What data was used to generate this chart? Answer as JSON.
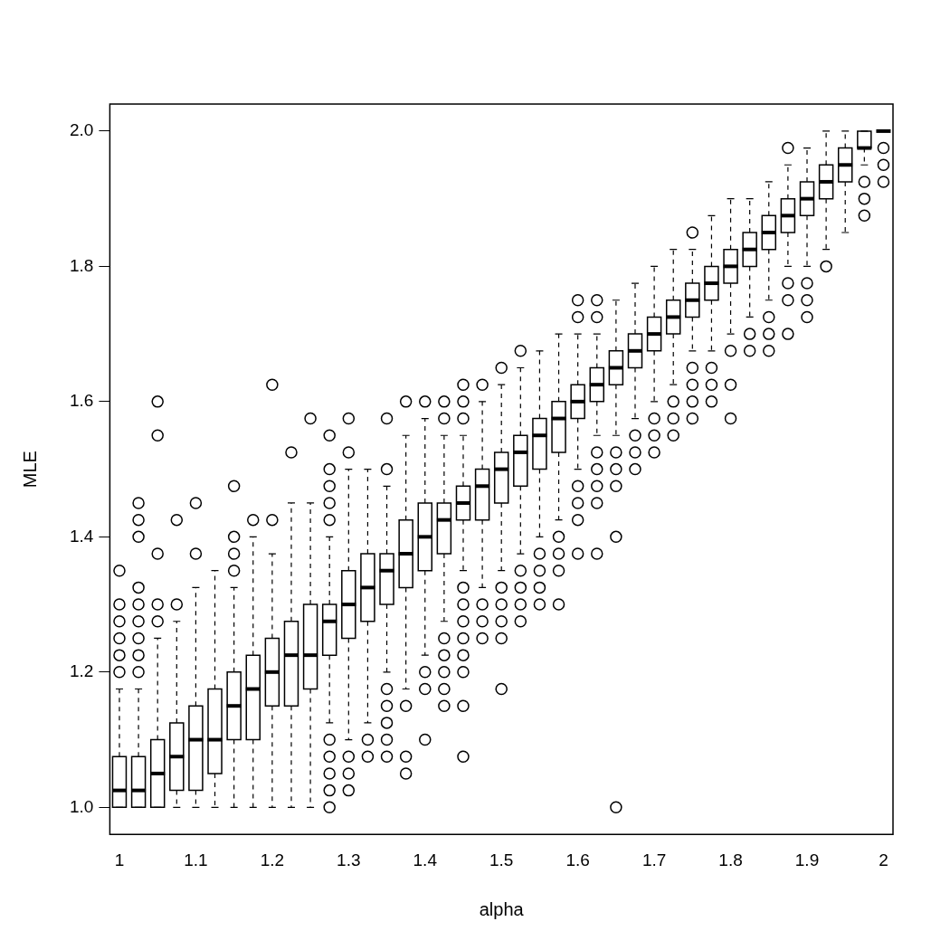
{
  "chart_data": {
    "type": "box",
    "xlabel": "alpha",
    "ylabel": "MLE",
    "categories": [
      "1",
      null,
      null,
      null,
      "1.1",
      null,
      null,
      null,
      "1.2",
      null,
      null,
      null,
      "1.3",
      null,
      null,
      null,
      "1.4",
      null,
      null,
      null,
      "1.5",
      null,
      null,
      null,
      "1.6",
      null,
      null,
      null,
      "1.7",
      null,
      null,
      null,
      "1.8",
      null,
      null,
      null,
      "1.9",
      null,
      null,
      null,
      "2"
    ],
    "ylim": [
      0.96,
      2.04
    ],
    "yticks": [
      {
        "value": 1,
        "label": "1.0"
      },
      {
        "value": 1.2,
        "label": "1.2"
      },
      {
        "value": 1.4,
        "label": "1.4"
      },
      {
        "value": 1.6,
        "label": "1.6"
      },
      {
        "value": 1.8,
        "label": "1.8"
      },
      {
        "value": 2,
        "label": "2.0"
      }
    ],
    "grid": false,
    "legend": false,
    "marker": "circle",
    "line_style": "dashed",
    "boxes": [
      {
        "low": 1,
        "q1": 1,
        "median": 1.025,
        "q3": 1.075,
        "high": 1.175,
        "outliers": [
          1.2,
          1.225,
          1.25,
          1.275,
          1.3,
          1.35
        ]
      },
      {
        "low": 1,
        "q1": 1,
        "median": 1.025,
        "q3": 1.075,
        "high": 1.175,
        "outliers": [
          1.2,
          1.225,
          1.25,
          1.275,
          1.3,
          1.325,
          1.4,
          1.425,
          1.45
        ]
      },
      {
        "low": 1,
        "q1": 1,
        "median": 1.05,
        "q3": 1.1,
        "high": 1.25,
        "outliers": [
          1.275,
          1.3,
          1.375,
          1.55,
          1.6
        ]
      },
      {
        "low": 1,
        "q1": 1.025,
        "median": 1.075,
        "q3": 1.125,
        "high": 1.275,
        "outliers": [
          1.3,
          1.425
        ]
      },
      {
        "low": 1,
        "q1": 1.025,
        "median": 1.1,
        "q3": 1.15,
        "high": 1.325,
        "outliers": [
          1.375,
          1.45
        ]
      },
      {
        "low": 1,
        "q1": 1.05,
        "median": 1.1,
        "q3": 1.175,
        "high": 1.35
      },
      {
        "low": 1,
        "q1": 1.1,
        "median": 1.15,
        "q3": 1.2,
        "high": 1.325,
        "outliers": [
          1.35,
          1.375,
          1.4,
          1.475
        ]
      },
      {
        "low": 1,
        "q1": 1.1,
        "median": 1.175,
        "q3": 1.225,
        "high": 1.4,
        "outliers": [
          1.425
        ]
      },
      {
        "low": 1,
        "q1": 1.15,
        "median": 1.2,
        "q3": 1.25,
        "high": 1.375,
        "outliers": [
          1.425,
          1.625
        ]
      },
      {
        "low": 1,
        "q1": 1.15,
        "median": 1.225,
        "q3": 1.275,
        "high": 1.45,
        "outliers": [
          1.525
        ]
      },
      {
        "low": 1,
        "q1": 1.175,
        "median": 1.225,
        "q3": 1.3,
        "high": 1.45,
        "outliers": [
          1.575
        ]
      },
      {
        "low": 1.125,
        "q1": 1.225,
        "median": 1.275,
        "q3": 1.3,
        "high": 1.4,
        "outliers": [
          1,
          1.025,
          1.05,
          1.075,
          1.1,
          1.425,
          1.45,
          1.475,
          1.5,
          1.55
        ]
      },
      {
        "low": 1.1,
        "q1": 1.25,
        "median": 1.3,
        "q3": 1.35,
        "high": 1.5,
        "outliers": [
          1.025,
          1.05,
          1.075,
          1.525,
          1.575
        ]
      },
      {
        "low": 1.125,
        "q1": 1.275,
        "median": 1.325,
        "q3": 1.375,
        "high": 1.5,
        "outliers": [
          1.075,
          1.1
        ]
      },
      {
        "low": 1.2,
        "q1": 1.3,
        "median": 1.35,
        "q3": 1.375,
        "high": 1.475,
        "outliers": [
          1.075,
          1.1,
          1.125,
          1.15,
          1.175,
          1.5,
          1.575
        ]
      },
      {
        "low": 1.175,
        "q1": 1.325,
        "median": 1.375,
        "q3": 1.425,
        "high": 1.55,
        "outliers": [
          1.05,
          1.075,
          1.15,
          1.6
        ]
      },
      {
        "low": 1.225,
        "q1": 1.35,
        "median": 1.4,
        "q3": 1.45,
        "high": 1.575,
        "outliers": [
          1.1,
          1.175,
          1.2,
          1.6
        ]
      },
      {
        "low": 1.275,
        "q1": 1.375,
        "median": 1.425,
        "q3": 1.45,
        "high": 1.55,
        "outliers": [
          1.15,
          1.175,
          1.2,
          1.225,
          1.25,
          1.575,
          1.6
        ]
      },
      {
        "low": 1.35,
        "q1": 1.425,
        "median": 1.45,
        "q3": 1.475,
        "high": 1.55,
        "outliers": [
          1.075,
          1.15,
          1.2,
          1.225,
          1.25,
          1.275,
          1.3,
          1.325,
          1.575,
          1.6,
          1.625
        ]
      },
      {
        "low": 1.325,
        "q1": 1.425,
        "median": 1.475,
        "q3": 1.5,
        "high": 1.6,
        "outliers": [
          1.25,
          1.275,
          1.3,
          1.625
        ]
      },
      {
        "low": 1.35,
        "q1": 1.45,
        "median": 1.5,
        "q3": 1.525,
        "high": 1.625,
        "outliers": [
          1.175,
          1.25,
          1.275,
          1.3,
          1.325,
          1.65
        ]
      },
      {
        "low": 1.375,
        "q1": 1.475,
        "median": 1.525,
        "q3": 1.55,
        "high": 1.65,
        "outliers": [
          1.275,
          1.3,
          1.325,
          1.35,
          1.675
        ]
      },
      {
        "low": 1.4,
        "q1": 1.5,
        "median": 1.55,
        "q3": 1.575,
        "high": 1.675,
        "outliers": [
          1.3,
          1.325,
          1.35,
          1.375
        ]
      },
      {
        "low": 1.425,
        "q1": 1.525,
        "median": 1.575,
        "q3": 1.6,
        "high": 1.7,
        "outliers": [
          1.3,
          1.35,
          1.375,
          1.4
        ]
      },
      {
        "low": 1.5,
        "q1": 1.575,
        "median": 1.6,
        "q3": 1.625,
        "high": 1.7,
        "outliers": [
          1.375,
          1.425,
          1.45,
          1.475,
          1.725,
          1.75
        ]
      },
      {
        "low": 1.55,
        "q1": 1.6,
        "median": 1.625,
        "q3": 1.65,
        "high": 1.7,
        "outliers": [
          1.375,
          1.45,
          1.475,
          1.5,
          1.525,
          1.725,
          1.75
        ]
      },
      {
        "low": 1.55,
        "q1": 1.625,
        "median": 1.65,
        "q3": 1.675,
        "high": 1.75,
        "outliers": [
          1,
          1.4,
          1.475,
          1.5,
          1.525
        ]
      },
      {
        "low": 1.575,
        "q1": 1.65,
        "median": 1.675,
        "q3": 1.7,
        "high": 1.775,
        "outliers": [
          1.5,
          1.525,
          1.55
        ]
      },
      {
        "low": 1.6,
        "q1": 1.675,
        "median": 1.7,
        "q3": 1.725,
        "high": 1.8,
        "outliers": [
          1.525,
          1.55,
          1.575
        ]
      },
      {
        "low": 1.625,
        "q1": 1.7,
        "median": 1.725,
        "q3": 1.75,
        "high": 1.825,
        "outliers": [
          1.55,
          1.575,
          1.6
        ]
      },
      {
        "low": 1.675,
        "q1": 1.725,
        "median": 1.75,
        "q3": 1.775,
        "high": 1.825,
        "outliers": [
          1.575,
          1.6,
          1.625,
          1.65,
          1.85
        ]
      },
      {
        "low": 1.675,
        "q1": 1.75,
        "median": 1.775,
        "q3": 1.8,
        "high": 1.875,
        "outliers": [
          1.6,
          1.625,
          1.65
        ]
      },
      {
        "low": 1.7,
        "q1": 1.775,
        "median": 1.8,
        "q3": 1.825,
        "high": 1.9,
        "outliers": [
          1.575,
          1.625,
          1.675
        ]
      },
      {
        "low": 1.725,
        "q1": 1.8,
        "median": 1.825,
        "q3": 1.85,
        "high": 1.9,
        "outliers": [
          1.675,
          1.7
        ]
      },
      {
        "low": 1.75,
        "q1": 1.825,
        "median": 1.85,
        "q3": 1.875,
        "high": 1.925,
        "outliers": [
          1.675,
          1.7,
          1.725
        ]
      },
      {
        "low": 1.8,
        "q1": 1.85,
        "median": 1.875,
        "q3": 1.9,
        "high": 1.95,
        "outliers": [
          1.7,
          1.75,
          1.775,
          1.975
        ]
      },
      {
        "low": 1.8,
        "q1": 1.875,
        "median": 1.9,
        "q3": 1.925,
        "high": 1.975,
        "outliers": [
          1.725,
          1.75,
          1.775
        ]
      },
      {
        "low": 1.825,
        "q1": 1.9,
        "median": 1.925,
        "q3": 1.95,
        "high": 2,
        "outliers": [
          1.8
        ]
      },
      {
        "low": 1.85,
        "q1": 1.925,
        "median": 1.95,
        "q3": 1.975,
        "high": 2
      },
      {
        "low": 1.95,
        "q1": 1.975,
        "median": 1.975,
        "q3": 2,
        "high": 2,
        "outliers": [
          1.875,
          1.9,
          1.925
        ]
      },
      {
        "low": 2,
        "q1": 2,
        "median": 2,
        "q3": 2,
        "high": 2,
        "outliers": [
          1.925,
          1.95,
          1.975
        ]
      }
    ]
  }
}
